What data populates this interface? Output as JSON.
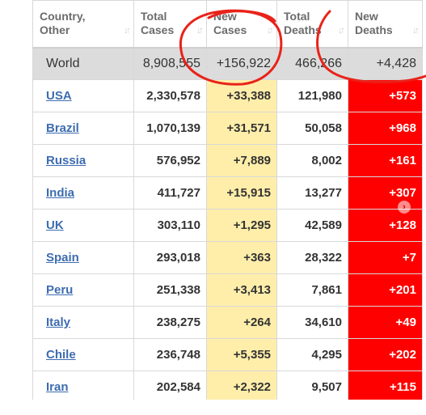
{
  "columns": [
    {
      "line1": "Country,",
      "line2": "Other"
    },
    {
      "line1": "Total",
      "line2": "Cases"
    },
    {
      "line1": "New",
      "line2": "Cases"
    },
    {
      "line1": "Total",
      "line2": "Deaths"
    },
    {
      "line1": "New",
      "line2": "Deaths"
    }
  ],
  "world": {
    "country": "World",
    "total_cases": "8,908,555",
    "new_cases": "+156,922",
    "total_deaths": "466,266",
    "new_deaths": "+4,428"
  },
  "rows": [
    {
      "country": "USA",
      "total_cases": "2,330,578",
      "new_cases": "+33,388",
      "total_deaths": "121,980",
      "new_deaths": "+573"
    },
    {
      "country": "Brazil",
      "total_cases": "1,070,139",
      "new_cases": "+31,571",
      "total_deaths": "50,058",
      "new_deaths": "+968"
    },
    {
      "country": "Russia",
      "total_cases": "576,952",
      "new_cases": "+7,889",
      "total_deaths": "8,002",
      "new_deaths": "+161"
    },
    {
      "country": "India",
      "total_cases": "411,727",
      "new_cases": "+15,915",
      "total_deaths": "13,277",
      "new_deaths": "+307"
    },
    {
      "country": "UK",
      "total_cases": "303,110",
      "new_cases": "+1,295",
      "total_deaths": "42,589",
      "new_deaths": "+128"
    },
    {
      "country": "Spain",
      "total_cases": "293,018",
      "new_cases": "+363",
      "total_deaths": "28,322",
      "new_deaths": "+7"
    },
    {
      "country": "Peru",
      "total_cases": "251,338",
      "new_cases": "+3,413",
      "total_deaths": "7,861",
      "new_deaths": "+201"
    },
    {
      "country": "Italy",
      "total_cases": "238,275",
      "new_cases": "+264",
      "total_deaths": "34,610",
      "new_deaths": "+49"
    },
    {
      "country": "Chile",
      "total_cases": "236,748",
      "new_cases": "+5,355",
      "total_deaths": "4,295",
      "new_deaths": "+202"
    },
    {
      "country": "Iran",
      "total_cases": "202,584",
      "new_cases": "+2,322",
      "total_deaths": "9,507",
      "new_deaths": "+115"
    }
  ],
  "colors": {
    "new_cases_bg": "#ffeeaa",
    "new_deaths_bg": "#ff0000",
    "world_row_bg": "#dcdcdc",
    "link": "#3d6cb0",
    "annotation": "#e8231a"
  },
  "icons": {
    "sort": "sort-arrows-icon",
    "scroll": "chevron-right-icon"
  }
}
